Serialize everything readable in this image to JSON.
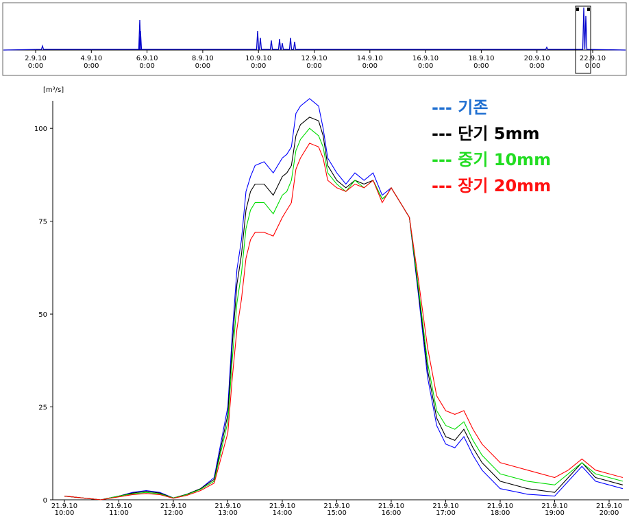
{
  "overview": {
    "ticks": [
      {
        "d": "2.9.10",
        "t": "0:00"
      },
      {
        "d": "4.9.10",
        "t": "0:00"
      },
      {
        "d": "6.9.10",
        "t": "0:00"
      },
      {
        "d": "8.9.10",
        "t": "0:00"
      },
      {
        "d": "10.9.10",
        "t": "0:00"
      },
      {
        "d": "12.9.10",
        "t": "0:00"
      },
      {
        "d": "14.9.10",
        "t": "0:00"
      },
      {
        "d": "16.9.10",
        "t": "0:00"
      },
      {
        "d": "18.9.10",
        "t": "0:00"
      },
      {
        "d": "20.9.10",
        "t": "0:00"
      },
      {
        "d": "22.9.10",
        "t": "0:00"
      }
    ],
    "line_color": "#0000cc",
    "selection_start": "2010-09-21 10:00",
    "selection_end": "2010-09-21 20:00"
  },
  "chart_data": {
    "type": "line",
    "title": "",
    "ylabel": "[m³/s]",
    "ylim": [
      0,
      110
    ],
    "yticks": [
      0,
      25,
      50,
      75,
      100
    ],
    "xlim": [
      "2010-09-21 10:00",
      "2010-09-21 20:15"
    ],
    "xticks": [
      {
        "d": "21.9.10",
        "t": "10:00"
      },
      {
        "d": "21.9.10",
        "t": "11:00"
      },
      {
        "d": "21.9.10",
        "t": "12:00"
      },
      {
        "d": "21.9.10",
        "t": "13:00"
      },
      {
        "d": "21.9.10",
        "t": "14:00"
      },
      {
        "d": "21.9.10",
        "t": "15:00"
      },
      {
        "d": "21.9.10",
        "t": "16:00"
      },
      {
        "d": "21.9.10",
        "t": "17:00"
      },
      {
        "d": "21.9.10",
        "t": "18:00"
      },
      {
        "d": "21.9.10",
        "t": "19:00"
      },
      {
        "d": "21.9.10",
        "t": "20:00"
      }
    ],
    "x": [
      "10:00",
      "10:20",
      "10:40",
      "11:00",
      "11:15",
      "11:30",
      "11:45",
      "12:00",
      "12:15",
      "12:30",
      "12:45",
      "13:00",
      "13:05",
      "13:10",
      "13:15",
      "13:20",
      "13:25",
      "13:30",
      "13:40",
      "13:50",
      "14:00",
      "14:05",
      "14:10",
      "14:15",
      "14:20",
      "14:30",
      "14:40",
      "14:45",
      "14:50",
      "15:00",
      "15:10",
      "15:20",
      "15:30",
      "15:40",
      "15:50",
      "15:55",
      "16:00",
      "16:05",
      "16:10",
      "16:20",
      "16:30",
      "16:40",
      "16:50",
      "17:00",
      "17:10",
      "17:20",
      "17:30",
      "17:40",
      "18:00",
      "18:30",
      "19:00",
      "19:15",
      "19:30",
      "19:45",
      "20:00",
      "20:15"
    ],
    "series": [
      {
        "name": "기존",
        "color": "#0000ff",
        "values": [
          1,
          0.5,
          0,
          1,
          2,
          2.5,
          2,
          0.5,
          1.5,
          3,
          6,
          25,
          45,
          62,
          70,
          83,
          87,
          90,
          91,
          88,
          92,
          93,
          95,
          104,
          106,
          108,
          106,
          100,
          92,
          88,
          85,
          88,
          86,
          88,
          82,
          83,
          84,
          82,
          80,
          76,
          55,
          33,
          20,
          15,
          14,
          17,
          12,
          8,
          3,
          1.5,
          1,
          5,
          9,
          5,
          4,
          3
        ]
      },
      {
        "name": "단기 5mm",
        "color": "#000000",
        "values": [
          1,
          0.5,
          0,
          1,
          1.8,
          2.3,
          1.8,
          0.5,
          1.5,
          3,
          5.5,
          23,
          42,
          58,
          66,
          78,
          83,
          85,
          85,
          82,
          87,
          88,
          90,
          98,
          101,
          103,
          102,
          98,
          90,
          86,
          84,
          86,
          85,
          86,
          81,
          82,
          84,
          82,
          80,
          76,
          56,
          35,
          22,
          17,
          16,
          19,
          14,
          10,
          5,
          3,
          2,
          6,
          10,
          6,
          5,
          4
        ]
      },
      {
        "name": "중기 10mm",
        "color": "#00dd00",
        "values": [
          1,
          0.5,
          0,
          1,
          1.6,
          2,
          1.6,
          0.5,
          1.4,
          2.8,
          5,
          21,
          38,
          53,
          61,
          73,
          78,
          80,
          80,
          77,
          82,
          83,
          86,
          94,
          97,
          100,
          98,
          95,
          88,
          85,
          83,
          86,
          84,
          86,
          81,
          82,
          84,
          82,
          80,
          76,
          57,
          37,
          24,
          20,
          19,
          21,
          16,
          12,
          7,
          5,
          4,
          7,
          10,
          7,
          6,
          5
        ]
      },
      {
        "name": "장기 20mm",
        "color": "#ff0000",
        "values": [
          1,
          0.5,
          0,
          0.8,
          1.4,
          1.7,
          1.4,
          0.4,
          1.2,
          2.5,
          4.5,
          18,
          33,
          46,
          54,
          65,
          70,
          72,
          72,
          71,
          76,
          78,
          80,
          89,
          92,
          96,
          95,
          92,
          86,
          84,
          83,
          85,
          84,
          86,
          80,
          82,
          84,
          82,
          80,
          76,
          59,
          41,
          28,
          24,
          23,
          24,
          19,
          15,
          10,
          8,
          6,
          8,
          11,
          8,
          7,
          6
        ]
      }
    ],
    "legend": [
      {
        "label": "--- 기존",
        "color": "#1f6fd1"
      },
      {
        "label": "--- 단기 5mm",
        "color": "#000000"
      },
      {
        "label": "--- 중기 10mm",
        "color": "#22dd22"
      },
      {
        "label": "--- 장기 20mm",
        "color": "#ff1111"
      }
    ],
    "legend_placement": "top-right",
    "grid": false
  }
}
